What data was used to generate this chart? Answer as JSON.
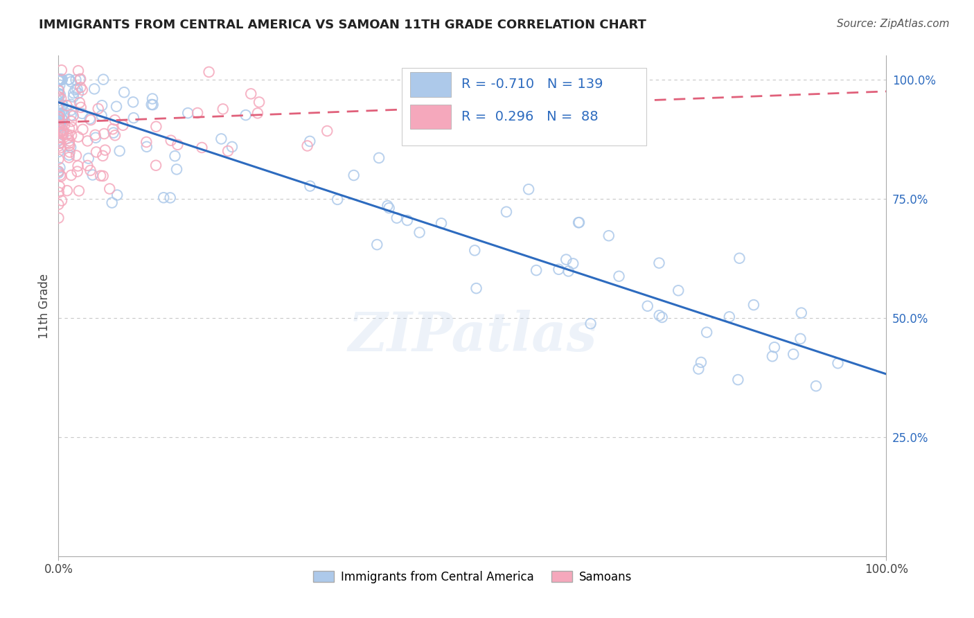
{
  "title": "IMMIGRANTS FROM CENTRAL AMERICA VS SAMOAN 11TH GRADE CORRELATION CHART",
  "source": "Source: ZipAtlas.com",
  "ylabel": "11th Grade",
  "xlim": [
    0.0,
    1.0
  ],
  "ylim": [
    0.0,
    1.0
  ],
  "R_blue": -0.71,
  "N_blue": 139,
  "R_pink": 0.296,
  "N_pink": 88,
  "watermark": "ZIPatlas",
  "background_color": "#ffffff",
  "grid_color": "#c8c8c8",
  "blue_color": "#adc9ea",
  "blue_line_color": "#2d6bbf",
  "pink_color": "#f5a8bc",
  "pink_line_color": "#e0607a",
  "legend_blue_label": "Immigrants from Central America",
  "legend_pink_label": "Samoans",
  "legend_R_color": "#2d6bbf",
  "legend_N_color": "#2d6bbf"
}
